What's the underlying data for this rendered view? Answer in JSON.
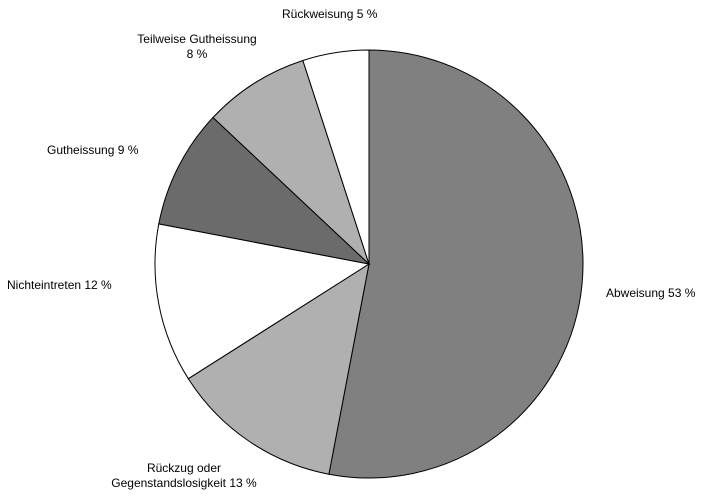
{
  "chart_data": {
    "type": "pie",
    "title": "",
    "slices": [
      {
        "label_lines": [
          "Abweisung 53 %"
        ],
        "value": 53,
        "color": "#808080"
      },
      {
        "label_lines": [
          "Rückzug oder",
          "Gegenstandslosigkeit 13 %"
        ],
        "value": 13,
        "color": "#b0b0b0"
      },
      {
        "label_lines": [
          "Nichteintreten 12 %"
        ],
        "value": 12,
        "color": "#ffffff"
      },
      {
        "label_lines": [
          "Gutheissung 9 %"
        ],
        "value": 9,
        "color": "#6b6b6b"
      },
      {
        "label_lines": [
          "Teilweise Gutheissung",
          "8 %"
        ],
        "value": 8,
        "color": "#b0b0b0"
      },
      {
        "label_lines": [
          "Rückweisung 5 %"
        ],
        "value": 5,
        "color": "#ffffff"
      }
    ],
    "start": "top, clockwise",
    "legend": "none (direct labels)"
  }
}
